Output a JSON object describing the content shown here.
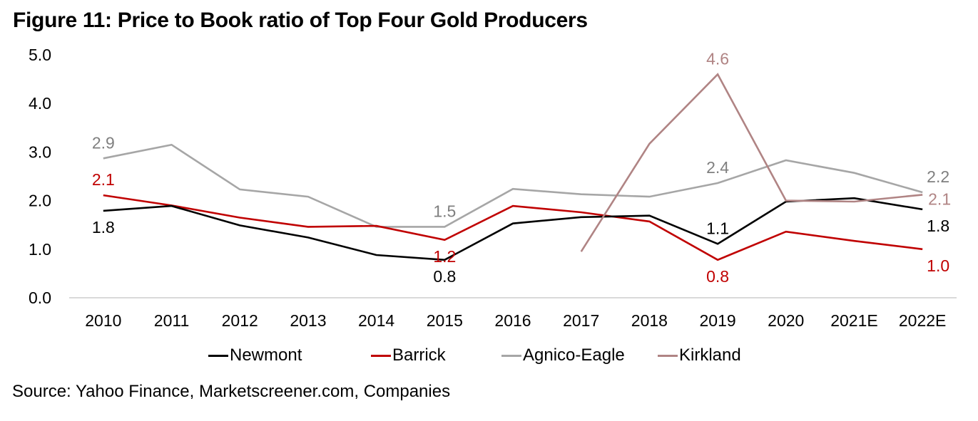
{
  "figure": {
    "title": "Figure 11: Price to Book ratio of Top Four Gold Producers",
    "source": "Source: Yahoo Finance, Marketscreener.com, Companies"
  },
  "chart_data": {
    "type": "line",
    "title": "Figure 11: Price to Book ratio of Top Four Gold Producers",
    "xlabel": "",
    "ylabel": "",
    "categories": [
      "2010",
      "2011",
      "2012",
      "2013",
      "2014",
      "2015",
      "2016",
      "2017",
      "2018",
      "2019",
      "2020",
      "2021E",
      "2022E"
    ],
    "ylim": [
      0,
      5
    ],
    "yticks": [
      0,
      1,
      2,
      3,
      4,
      5
    ],
    "ytick_labels": [
      "0.0",
      "1.0",
      "2.0",
      "3.0",
      "4.0",
      "5.0"
    ],
    "grid": false,
    "legend_position": "bottom",
    "series": [
      {
        "name": "Newmont",
        "color": "#000000",
        "label_color": "#000000",
        "values": [
          1.79,
          1.89,
          1.49,
          1.24,
          0.88,
          0.78,
          1.53,
          1.66,
          1.69,
          1.11,
          1.98,
          2.05,
          1.82
        ],
        "data_labels": [
          {
            "index": 0,
            "text": "1.8",
            "pos": "below"
          },
          {
            "index": 5,
            "text": "0.8",
            "pos": "below"
          },
          {
            "index": 9,
            "text": "1.1",
            "pos": "above"
          },
          {
            "index": 12,
            "text": "1.8",
            "pos": "below"
          }
        ]
      },
      {
        "name": "Barrick",
        "color": "#C00000",
        "label_color": "#C00000",
        "values": [
          2.11,
          1.9,
          1.65,
          1.46,
          1.48,
          1.19,
          1.89,
          1.76,
          1.57,
          0.78,
          1.36,
          1.17,
          1.0
        ],
        "data_labels": [
          {
            "index": 0,
            "text": "2.1",
            "pos": "above"
          },
          {
            "index": 5,
            "text": "1.2",
            "pos": "below"
          },
          {
            "index": 9,
            "text": "0.8",
            "pos": "below"
          },
          {
            "index": 12,
            "text": "1.0",
            "pos": "below"
          }
        ]
      },
      {
        "name": "Agnico-Eagle",
        "color": "#A6A6A6",
        "label_color": "#7F7F7F",
        "values": [
          2.87,
          3.15,
          2.23,
          2.08,
          1.46,
          1.46,
          2.24,
          2.13,
          2.08,
          2.36,
          2.83,
          2.57,
          2.17
        ],
        "data_labels": [
          {
            "index": 0,
            "text": "2.9",
            "pos": "above"
          },
          {
            "index": 5,
            "text": "1.5",
            "pos": "above"
          },
          {
            "index": 9,
            "text": "2.4",
            "pos": "above"
          },
          {
            "index": 12,
            "text": "2.2",
            "pos": "above"
          }
        ]
      },
      {
        "name": "Kirkland",
        "color": "#B08484",
        "label_color": "#B08484",
        "values": [
          null,
          null,
          null,
          null,
          null,
          null,
          null,
          0.95,
          3.17,
          4.6,
          2.0,
          1.98,
          2.12
        ],
        "data_labels": [
          {
            "index": 9,
            "text": "4.6",
            "pos": "above"
          },
          {
            "index": 12,
            "text": "2.1",
            "pos": "right"
          }
        ]
      }
    ]
  }
}
